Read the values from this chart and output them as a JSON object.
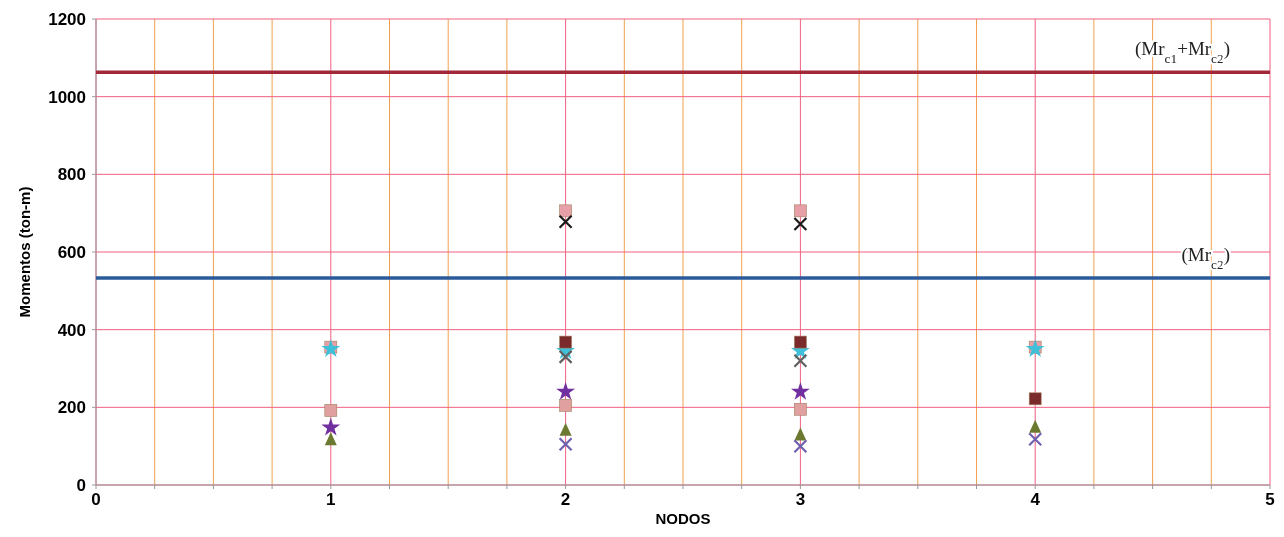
{
  "chart_data": {
    "type": "scatter",
    "xlabel": "NODOS",
    "ylabel": "Momentos (ton-m)",
    "x": [
      1,
      2,
      3,
      4
    ],
    "xlim": [
      0,
      5
    ],
    "xticks": [
      0,
      {
        "value": 0.25,
        "label": null
      },
      {
        "value": 0.5,
        "label": null
      },
      {
        "value": 0.75,
        "label": null
      },
      1,
      {
        "value": 1.25,
        "label": null
      },
      {
        "value": 1.5,
        "label": null
      },
      {
        "value": 1.75,
        "label": null
      },
      2,
      {
        "value": 2.25,
        "label": null
      },
      {
        "value": 2.5,
        "label": null
      },
      {
        "value": 2.75,
        "label": null
      },
      3,
      {
        "value": 3.25,
        "label": null
      },
      {
        "value": 3.5,
        "label": null
      },
      {
        "value": 3.75,
        "label": null
      },
      4,
      {
        "value": 4.25,
        "label": null
      },
      {
        "value": 4.5,
        "label": null
      },
      {
        "value": 4.75,
        "label": null
      },
      5
    ],
    "ylim": [
      0,
      1200
    ],
    "yticks": [
      0,
      200,
      400,
      600,
      800,
      1000,
      1200
    ],
    "grid": true,
    "series": [
      {
        "color": "#e8a0a8",
        "marker": "square",
        "values": [
          355,
          706,
          706,
          355
        ]
      },
      {
        "color": "#40c0d8",
        "marker": "star",
        "values": [
          350,
          345,
          345,
          350
        ]
      },
      {
        "color": "#7a2a2a",
        "marker": "square",
        "values": [
          null,
          368,
          368,
          222
        ]
      },
      {
        "color": "#1a1a1a",
        "marker": "cross",
        "values": [
          null,
          678,
          672,
          null
        ]
      },
      {
        "color": "#606060",
        "marker": "cross",
        "values": [
          null,
          330,
          320,
          null
        ]
      },
      {
        "color": "#7030a0",
        "marker": "star",
        "values": [
          148,
          240,
          240,
          null
        ]
      },
      {
        "color": "#e0a0a0",
        "marker": "square",
        "values": [
          192,
          205,
          195,
          null
        ]
      },
      {
        "color": "#6b7a30",
        "marker": "triangle",
        "values": [
          118,
          142,
          130,
          150
        ]
      },
      {
        "color": "#7060b0",
        "marker": "cross",
        "values": [
          null,
          105,
          100,
          118
        ]
      }
    ],
    "ref_lines": [
      {
        "axis": "y",
        "value": 1063,
        "label": "(Mr$_{c1}$+Mr$_{c2}$)",
        "color": "#a02838"
      },
      {
        "axis": "y",
        "value": 533,
        "label": "(Mr$_{c2}$)",
        "color": "#2a5a9a"
      }
    ]
  }
}
